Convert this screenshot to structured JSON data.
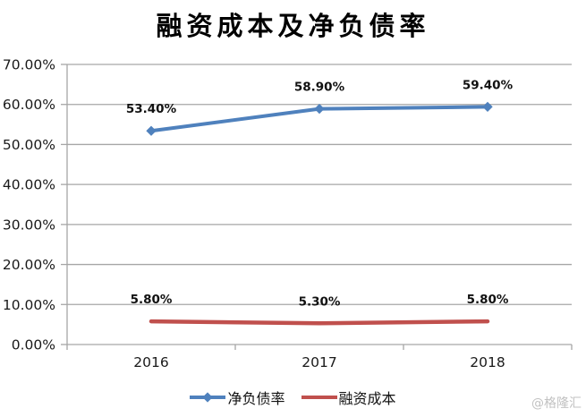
{
  "chart_data": {
    "type": "line",
    "title": "融资成本及净负债率",
    "categories": [
      "2016",
      "2017",
      "2018"
    ],
    "series": [
      {
        "name": "净负债率",
        "values": [
          53.4,
          58.9,
          59.4
        ],
        "labels": [
          "53.40%",
          "58.90%",
          "59.40%"
        ],
        "color": "#4F81BD",
        "marker": "diamond"
      },
      {
        "name": "融资成本",
        "values": [
          5.8,
          5.3,
          5.8
        ],
        "labels": [
          "5.80%",
          "5.30%",
          "5.80%"
        ],
        "color": "#C0504D",
        "marker": "none"
      }
    ],
    "xlabel": "",
    "ylabel": "",
    "ylim": [
      0,
      70
    ],
    "y_ticks": [
      "0.00%",
      "10.00%",
      "20.00%",
      "30.00%",
      "40.00%",
      "50.00%",
      "60.00%",
      "70.00%"
    ],
    "grid": true,
    "legend_position": "bottom"
  },
  "colors": {
    "grid": "#A6A6A6",
    "axis": "#A6A6A6",
    "tick_text": "#1a1a1a",
    "data_label_text": "#111111"
  },
  "watermark": "@格隆汇"
}
